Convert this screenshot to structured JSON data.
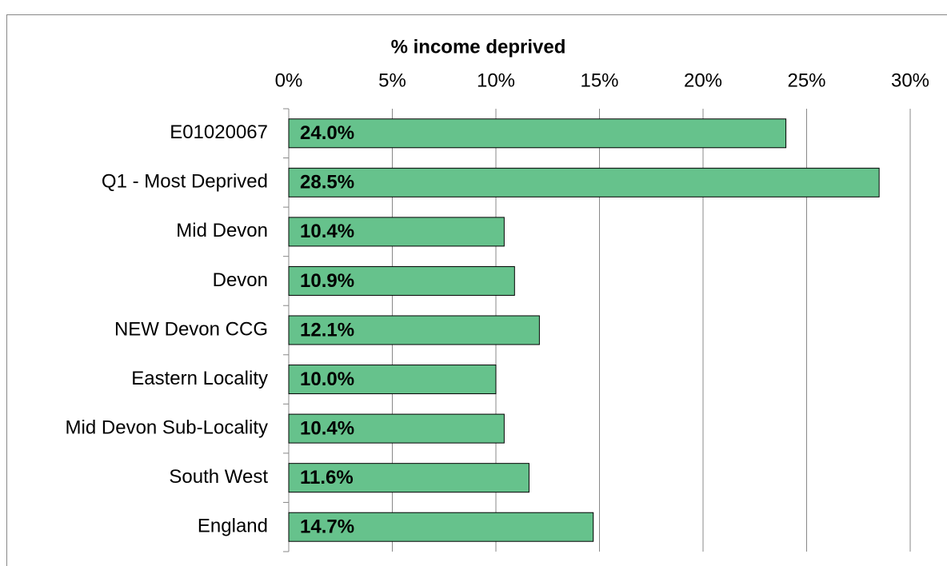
{
  "chart_data": {
    "type": "hbar",
    "x_label": "% income deprived",
    "categories": [
      "E01020067",
      "Q1 - Most Deprived",
      "Mid Devon",
      "Devon",
      "NEW Devon CCG",
      "Eastern Locality",
      "Mid Devon Sub-Locality",
      "South West",
      "England"
    ],
    "values": [
      24.0,
      28.5,
      10.4,
      10.9,
      12.1,
      10.0,
      10.4,
      11.6,
      14.7
    ],
    "value_labels": [
      "24.0%",
      "28.5%",
      "10.4%",
      "10.9%",
      "12.1%",
      "10.0%",
      "10.4%",
      "11.6%",
      "14.7%"
    ],
    "color": "#66c28c",
    "xlim": [
      0,
      30
    ],
    "xticks": [
      {
        "value": 0,
        "label": "0%"
      },
      {
        "value": 5,
        "label": "5%"
      },
      {
        "value": 10,
        "label": "10%"
      },
      {
        "value": 15,
        "label": "15%"
      },
      {
        "value": 20,
        "label": "20%"
      },
      {
        "value": 25,
        "label": "25%"
      },
      {
        "value": 30,
        "label": "30%"
      }
    ],
    "grid": true
  }
}
